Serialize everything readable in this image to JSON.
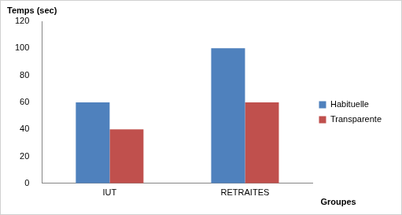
{
  "chart_data": {
    "type": "bar",
    "categories": [
      "IUT",
      "RETRAITES"
    ],
    "series": [
      {
        "name": "Habituelle",
        "color": "#4f81bd",
        "values": [
          60,
          100
        ]
      },
      {
        "name": "Transparente",
        "color": "#c0504d",
        "values": [
          40,
          60
        ]
      }
    ],
    "y_label": "Temps (sec)",
    "x_label": "Groupes",
    "ylim": [
      0,
      120
    ],
    "yticks": [
      0,
      20,
      40,
      60,
      80,
      100,
      120
    ],
    "grid": false,
    "legend": "right"
  }
}
